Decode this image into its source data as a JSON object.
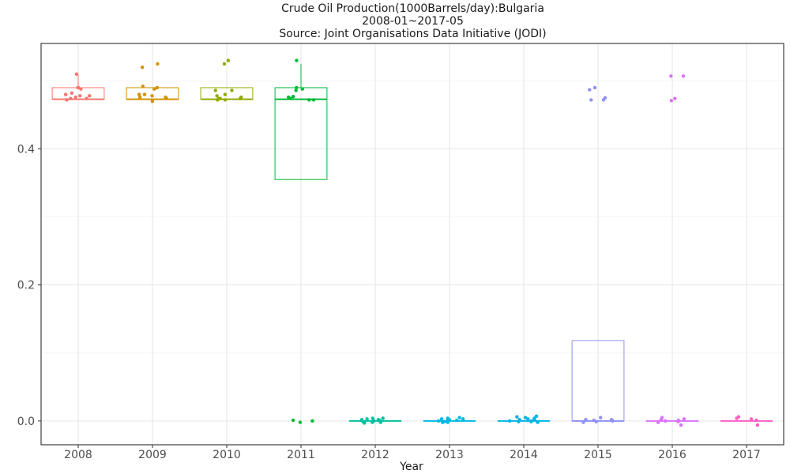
{
  "chart_data": {
    "type": "box",
    "title": "Crude Oil Production(1000Barrels/day):Bulgaria",
    "subtitle": "2008-01~2017-05",
    "source": "Source: Joint Organisations Data Initiative (JODI)",
    "xlabel": "Year",
    "ylabel": "",
    "ylim": [
      -0.035,
      0.555
    ],
    "y_ticks": [
      0.0,
      0.2,
      0.4
    ],
    "y_tick_labels": [
      "0.0",
      "0.2",
      "0.4"
    ],
    "grid": true,
    "legend": "none",
    "categories": [
      "2008",
      "2009",
      "2010",
      "2011",
      "2012",
      "2013",
      "2014",
      "2015",
      "2016",
      "2017"
    ],
    "colors": [
      "#F8766D",
      "#D39200",
      "#93AA00",
      "#00BA38",
      "#00C19F",
      "#00B9E3",
      "#00B4E6",
      "#8F91F7",
      "#DB72FB",
      "#FF61C3"
    ],
    "boxes": [
      {
        "year": "2008",
        "lower_whisker": 0.473,
        "q1": 0.473,
        "median": 0.473,
        "q3": 0.49,
        "upper_whisker": 0.51
      },
      {
        "year": "2009",
        "lower_whisker": 0.473,
        "q1": 0.473,
        "median": 0.473,
        "q3": 0.49,
        "upper_whisker": 0.49
      },
      {
        "year": "2010",
        "lower_whisker": 0.473,
        "q1": 0.473,
        "median": 0.473,
        "q3": 0.49,
        "upper_whisker": 0.49
      },
      {
        "year": "2011",
        "lower_whisker": 0.355,
        "q1": 0.355,
        "median": 0.473,
        "q3": 0.49,
        "upper_whisker": 0.525
      },
      {
        "year": "2012",
        "lower_whisker": 0.0,
        "q1": 0.0,
        "median": 0.0,
        "q3": 0.0,
        "upper_whisker": 0.0
      },
      {
        "year": "2013",
        "lower_whisker": 0.0,
        "q1": 0.0,
        "median": 0.0,
        "q3": 0.0,
        "upper_whisker": 0.0
      },
      {
        "year": "2014",
        "lower_whisker": 0.0,
        "q1": 0.0,
        "median": 0.0,
        "q3": 0.0,
        "upper_whisker": 0.0
      },
      {
        "year": "2015",
        "lower_whisker": 0.0,
        "q1": 0.0,
        "median": 0.0,
        "q3": 0.118,
        "upper_whisker": 0.118
      },
      {
        "year": "2016",
        "lower_whisker": 0.0,
        "q1": 0.0,
        "median": 0.0,
        "q3": 0.0,
        "upper_whisker": 0.0
      },
      {
        "year": "2017",
        "lower_whisker": 0.0,
        "q1": 0.0,
        "median": 0.0,
        "q3": 0.0,
        "upper_whisker": 0.0
      }
    ],
    "points": [
      {
        "year": "2008",
        "values": [
          0.49,
          0.478,
          0.472,
          0.474,
          0.51,
          0.49,
          0.48,
          0.478,
          0.488,
          0.476,
          0.482,
          0.474
        ]
      },
      {
        "year": "2009",
        "values": [
          0.49,
          0.476,
          0.47,
          0.48,
          0.525,
          0.52,
          0.488,
          0.478,
          0.492,
          0.48,
          0.476,
          0.474
        ]
      },
      {
        "year": "2010",
        "values": [
          0.486,
          0.48,
          0.474,
          0.472,
          0.525,
          0.53,
          0.486,
          0.474,
          0.478,
          0.476,
          0.472,
          0.474
        ]
      },
      {
        "year": "2011",
        "values": [
          0.488,
          0.486,
          0.474,
          0.472,
          0.53,
          0.49,
          0.476,
          0.472,
          0.477,
          0.0,
          -0.002,
          0.001
        ]
      },
      {
        "year": "2012",
        "values": [
          0.002,
          -0.002,
          0.004,
          0.001,
          -0.003,
          0.003,
          0.0,
          -0.001,
          0.002,
          0.004,
          -0.002,
          0.0
        ]
      },
      {
        "year": "2013",
        "values": [
          0.003,
          -0.001,
          0.004,
          0.002,
          -0.002,
          0.005,
          0.0,
          0.001,
          -0.002,
          0.003,
          0.001,
          0.0
        ]
      },
      {
        "year": "2014",
        "values": [
          0.006,
          0.0,
          0.004,
          -0.002,
          0.007,
          0.002,
          -0.001,
          0.003,
          0.005,
          0.0,
          -0.001,
          0.002
        ]
      },
      {
        "year": "2015",
        "values": [
          0.487,
          0.49,
          0.472,
          0.475,
          0.472,
          0.002,
          -0.002,
          0.001,
          0.005,
          -0.001,
          0.002,
          0.0
        ]
      },
      {
        "year": "2016",
        "values": [
          0.507,
          0.507,
          0.474,
          0.471,
          0.002,
          -0.006,
          0.003,
          0.0,
          -0.002,
          0.005,
          0.001,
          -0.001
        ]
      },
      {
        "year": "2017",
        "values": [
          0.003,
          -0.006,
          0.006,
          0.001,
          0.004
        ]
      }
    ]
  }
}
